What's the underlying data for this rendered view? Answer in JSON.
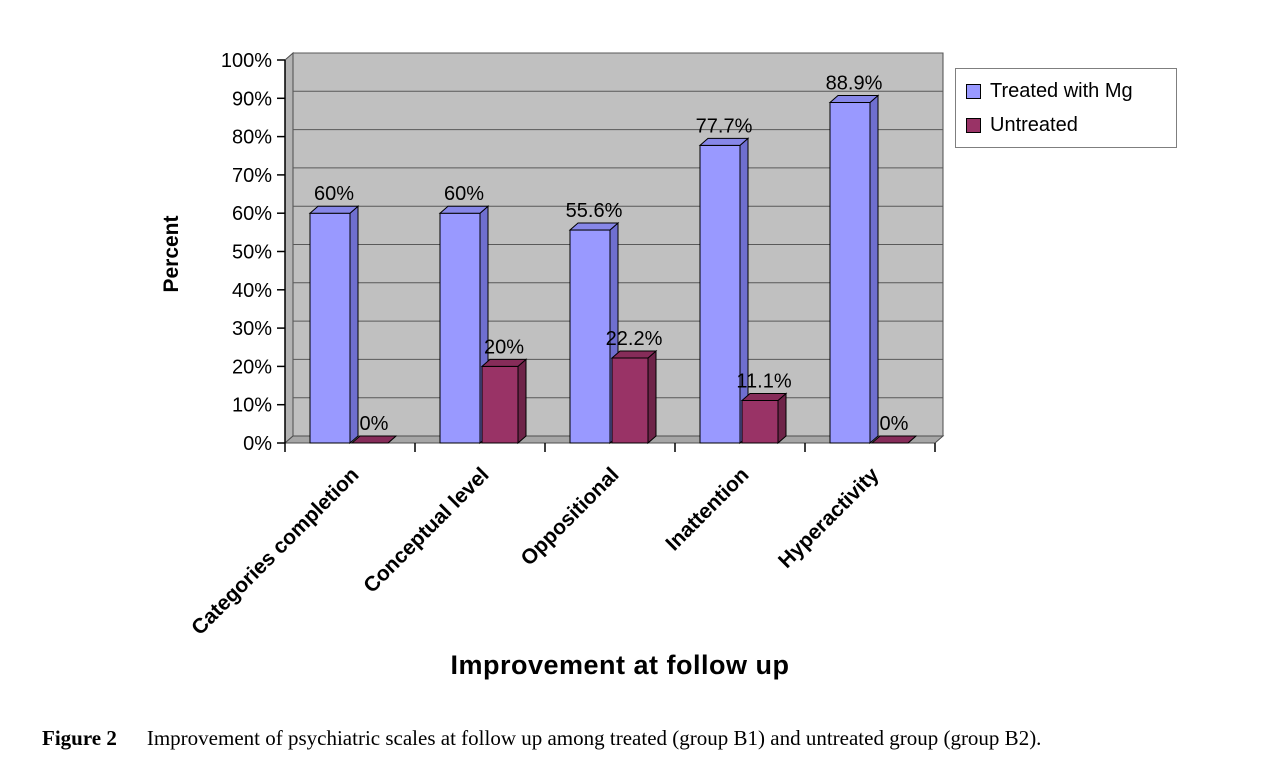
{
  "chart_data": {
    "type": "bar",
    "style": "3d-clustered-column",
    "categories": [
      "Categories completion",
      "Conceptual level",
      "Oppositional",
      "Inattention",
      "Hyperactivity"
    ],
    "series": [
      {
        "name": "Treated with Mg",
        "color": "#9999ff",
        "top_color": "#8787e8",
        "side_color": "#6f6fd0",
        "values": [
          60,
          60,
          55.6,
          77.7,
          88.9
        ],
        "labels": [
          "60%",
          "60%",
          "55.6%",
          "77.7%",
          "88.9%"
        ]
      },
      {
        "name": "Untreated",
        "color": "#993366",
        "top_color": "#862c59",
        "side_color": "#6e2449",
        "values": [
          0,
          20,
          22.2,
          11.1,
          0
        ],
        "labels": [
          "0%",
          "20%",
          "22.2%",
          "11.1%",
          "0%"
        ]
      }
    ],
    "title": "",
    "xlabel": "Improvement at follow up",
    "ylabel": "Percent",
    "ylim": [
      0,
      100
    ],
    "y_ticks": [
      "0%",
      "10%",
      "20%",
      "30%",
      "40%",
      "50%",
      "60%",
      "70%",
      "80%",
      "90%",
      "100%"
    ],
    "grid": true,
    "legend_position": "top-right",
    "wall_color": "#c0c0c0",
    "floor_color": "#a6a6a6",
    "left_wall_color": "#b3b3b3"
  },
  "caption": {
    "label": "Figure 2",
    "text": "Improvement of psychiatric scales at follow up among treated (group B1) and untreated group (group B2)."
  }
}
